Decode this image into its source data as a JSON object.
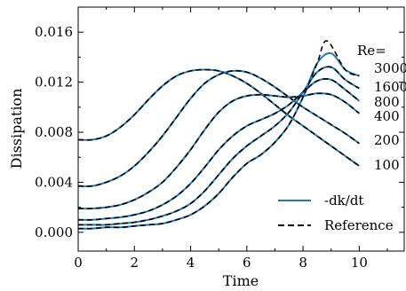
{
  "chart_data": {
    "type": "line",
    "xlabel": "Time",
    "ylabel": "Dissipation",
    "xlim": [
      0,
      11.6
    ],
    "ylim": [
      -0.0015,
      0.018
    ],
    "x_ticks": [
      0,
      2,
      4,
      6,
      8,
      10
    ],
    "y_ticks": [
      0.0,
      0.004,
      0.008,
      0.012,
      0.016
    ],
    "x_tick_labels": [
      "0",
      "2",
      "4",
      "6",
      "8",
      "10"
    ],
    "y_tick_labels": [
      "0.000",
      "0.004",
      "0.008",
      "0.012",
      "0.016"
    ],
    "grid": false,
    "legend_position": "bottom-right",
    "legend": [
      {
        "label": "-dk/dt",
        "style": "solid",
        "color": "#1f77b4"
      },
      {
        "label": "Reference",
        "style": "dashed",
        "color": "#000000"
      }
    ],
    "re_header": "Re=",
    "series": [
      {
        "re": "100",
        "label": "100",
        "x": [
          0,
          0.5,
          1,
          1.5,
          2,
          2.5,
          3,
          3.5,
          4,
          4.5,
          5,
          5.5,
          6,
          6.5,
          7,
          7.5,
          8,
          8.5,
          9,
          9.5,
          10
        ],
        "y": [
          0.0074,
          0.0074,
          0.0077,
          0.0084,
          0.0094,
          0.0106,
          0.0117,
          0.0125,
          0.0129,
          0.013,
          0.0129,
          0.0125,
          0.0119,
          0.0111,
          0.0102,
          0.0093,
          0.0085,
          0.0077,
          0.0069,
          0.0061,
          0.0053
        ]
      },
      {
        "re": "200",
        "label": "200",
        "x": [
          0,
          0.5,
          1,
          1.5,
          2,
          2.5,
          3,
          3.5,
          4,
          4.5,
          5,
          5.5,
          6,
          6.5,
          7,
          7.5,
          8,
          8.5,
          9,
          9.5,
          10
        ],
        "y": [
          0.0037,
          0.0037,
          0.004,
          0.0045,
          0.0053,
          0.0064,
          0.0077,
          0.0092,
          0.0107,
          0.0119,
          0.0126,
          0.0129,
          0.0128,
          0.0123,
          0.0116,
          0.0108,
          0.01,
          0.0093,
          0.0086,
          0.0079,
          0.0071
        ]
      },
      {
        "re": "400",
        "label": "400",
        "x": [
          0,
          0.5,
          1,
          1.5,
          2,
          2.5,
          3,
          3.5,
          4,
          4.5,
          5,
          5.5,
          6,
          6.5,
          7,
          7.5,
          8,
          8.5,
          9,
          9.5,
          10
        ],
        "y": [
          0.0019,
          0.0019,
          0.002,
          0.0022,
          0.0026,
          0.0032,
          0.004,
          0.0052,
          0.0066,
          0.0082,
          0.0096,
          0.0105,
          0.0109,
          0.011,
          0.0109,
          0.0108,
          0.0109,
          0.0111,
          0.011,
          0.0104,
          0.0095
        ]
      },
      {
        "re": "800",
        "label": "800",
        "x": [
          0,
          0.5,
          1,
          1.5,
          2,
          2.5,
          3,
          3.5,
          4,
          4.5,
          5,
          5.5,
          6,
          6.5,
          7,
          7.5,
          8,
          8.5,
          9,
          9.5,
          10
        ],
        "y": [
          0.001,
          0.001,
          0.0011,
          0.0012,
          0.0014,
          0.0017,
          0.0022,
          0.0029,
          0.0039,
          0.0052,
          0.0066,
          0.0077,
          0.0085,
          0.009,
          0.0095,
          0.0102,
          0.0112,
          0.0121,
          0.0122,
          0.0114,
          0.0105
        ]
      },
      {
        "re": "1600",
        "label": "1600",
        "x": [
          0,
          0.5,
          1,
          1.5,
          2,
          2.5,
          3,
          3.5,
          4,
          4.5,
          5,
          5.5,
          6,
          6.5,
          7,
          7.5,
          8,
          8.5,
          9,
          9.5,
          10
        ],
        "y": [
          0.0006,
          0.0006,
          0.0006,
          0.0007,
          0.0008,
          0.001,
          0.0013,
          0.0017,
          0.0023,
          0.0033,
          0.0046,
          0.0059,
          0.0069,
          0.0077,
          0.0085,
          0.0096,
          0.0112,
          0.0128,
          0.0132,
          0.0122,
          0.0115
        ]
      },
      {
        "re": "3000",
        "label": "3000",
        "x": [
          0,
          0.5,
          1,
          1.5,
          2,
          2.5,
          3,
          3.5,
          4,
          4.5,
          5,
          5.5,
          6,
          6.5,
          7,
          7.5,
          8,
          8.5,
          9,
          9.5,
          10
        ],
        "y": [
          0.0003,
          0.0003,
          0.0004,
          0.0004,
          0.0005,
          0.0006,
          0.0007,
          0.001,
          0.0014,
          0.0021,
          0.0031,
          0.0044,
          0.0055,
          0.0062,
          0.0072,
          0.0086,
          0.0108,
          0.0135,
          0.0143,
          0.013,
          0.0125
        ]
      }
    ],
    "reference_overshoot": {
      "re": "3000",
      "x": 8.85,
      "y": 0.0153
    }
  }
}
